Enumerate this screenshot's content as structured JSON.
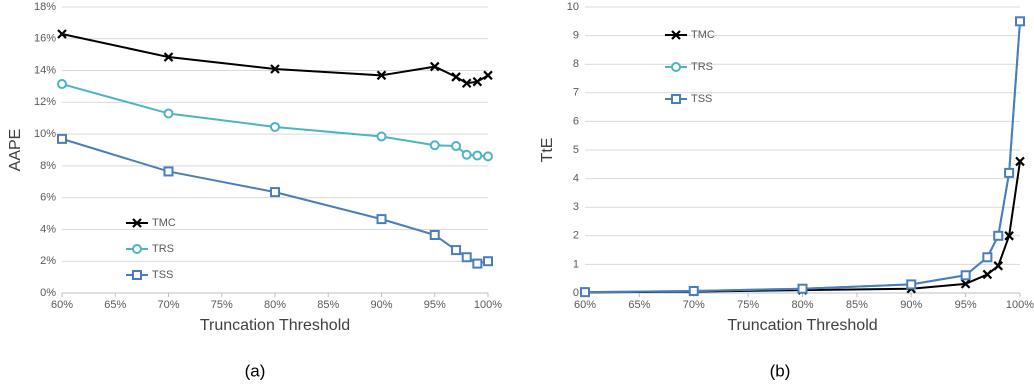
{
  "chart_data": [
    {
      "type": "line",
      "subcaption": "(a)",
      "xlabel": "Truncation Threshold",
      "ylabel": "AAPE",
      "x": [
        60,
        70,
        80,
        90,
        95,
        97,
        98,
        99,
        100
      ],
      "xlim": [
        60,
        100
      ],
      "xticks": [
        {
          "value": 60,
          "label": "60%"
        },
        {
          "value": 65,
          "label": "65%"
        },
        {
          "value": 70,
          "label": "70%"
        },
        {
          "value": 75,
          "label": "75%"
        },
        {
          "value": 80,
          "label": "80%"
        },
        {
          "value": 85,
          "label": "85%"
        },
        {
          "value": 90,
          "label": "90%"
        },
        {
          "value": 95,
          "label": "95%"
        },
        {
          "value": 100,
          "label": "100%"
        }
      ],
      "ylim": [
        0,
        18
      ],
      "yticks": [
        {
          "value": 0,
          "label": "0%"
        },
        {
          "value": 2,
          "label": "2%"
        },
        {
          "value": 4,
          "label": "4%"
        },
        {
          "value": 6,
          "label": "6%"
        },
        {
          "value": 8,
          "label": "8%"
        },
        {
          "value": 10,
          "label": "10%"
        },
        {
          "value": 12,
          "label": "12%"
        },
        {
          "value": 14,
          "label": "14%"
        },
        {
          "value": 16,
          "label": "16%"
        },
        {
          "value": 18,
          "label": "18%"
        }
      ],
      "grid": true,
      "legend": "lower left",
      "series": [
        {
          "name": "TMC",
          "color": "#000000",
          "marker": "x",
          "values": [
            16.3,
            14.85,
            14.1,
            13.7,
            14.25,
            13.6,
            13.2,
            13.3,
            13.7
          ]
        },
        {
          "name": "TRS",
          "color": "#4bb5c1",
          "marker": "circle",
          "values": [
            13.15,
            11.3,
            10.45,
            9.85,
            9.3,
            9.25,
            8.7,
            8.65,
            8.6
          ]
        },
        {
          "name": "TSS",
          "color": "#4a7ebb",
          "marker": "square",
          "values": [
            9.7,
            7.65,
            6.35,
            4.65,
            3.65,
            2.7,
            2.25,
            1.85,
            2.0
          ]
        }
      ]
    },
    {
      "type": "line",
      "subcaption": "(b)",
      "xlabel": "Truncation Threshold",
      "ylabel": "TtE",
      "x": [
        60,
        70,
        80,
        90,
        95,
        97,
        98,
        99,
        100
      ],
      "xlim": [
        60,
        100
      ],
      "xticks": [
        {
          "value": 60,
          "label": "60%"
        },
        {
          "value": 65,
          "label": "65%"
        },
        {
          "value": 70,
          "label": "70%"
        },
        {
          "value": 75,
          "label": "75%"
        },
        {
          "value": 80,
          "label": "80%"
        },
        {
          "value": 85,
          "label": "85%"
        },
        {
          "value": 90,
          "label": "90%"
        },
        {
          "value": 95,
          "label": "95%"
        },
        {
          "value": 100,
          "label": "100%"
        }
      ],
      "ylim": [
        0,
        10
      ],
      "yticks": [
        0,
        1,
        2,
        3,
        4,
        5,
        6,
        7,
        8,
        9,
        10
      ],
      "grid": true,
      "legend": "upper left",
      "series": [
        {
          "name": "TMC",
          "color": "#000000",
          "marker": "x",
          "values": [
            0.02,
            0.05,
            0.1,
            0.15,
            0.32,
            0.65,
            0.95,
            2.0,
            4.6
          ]
        },
        {
          "name": "TRS",
          "color": "#4bb5c1",
          "marker": "circle",
          "values": [
            0.03,
            0.07,
            0.15,
            0.3,
            0.62,
            1.25,
            2.0,
            4.2,
            9.5
          ]
        },
        {
          "name": "TSS",
          "color": "#4a7ebb",
          "marker": "square",
          "values": [
            0.03,
            0.07,
            0.15,
            0.3,
            0.62,
            1.25,
            2.0,
            4.2,
            9.5
          ]
        }
      ]
    }
  ]
}
